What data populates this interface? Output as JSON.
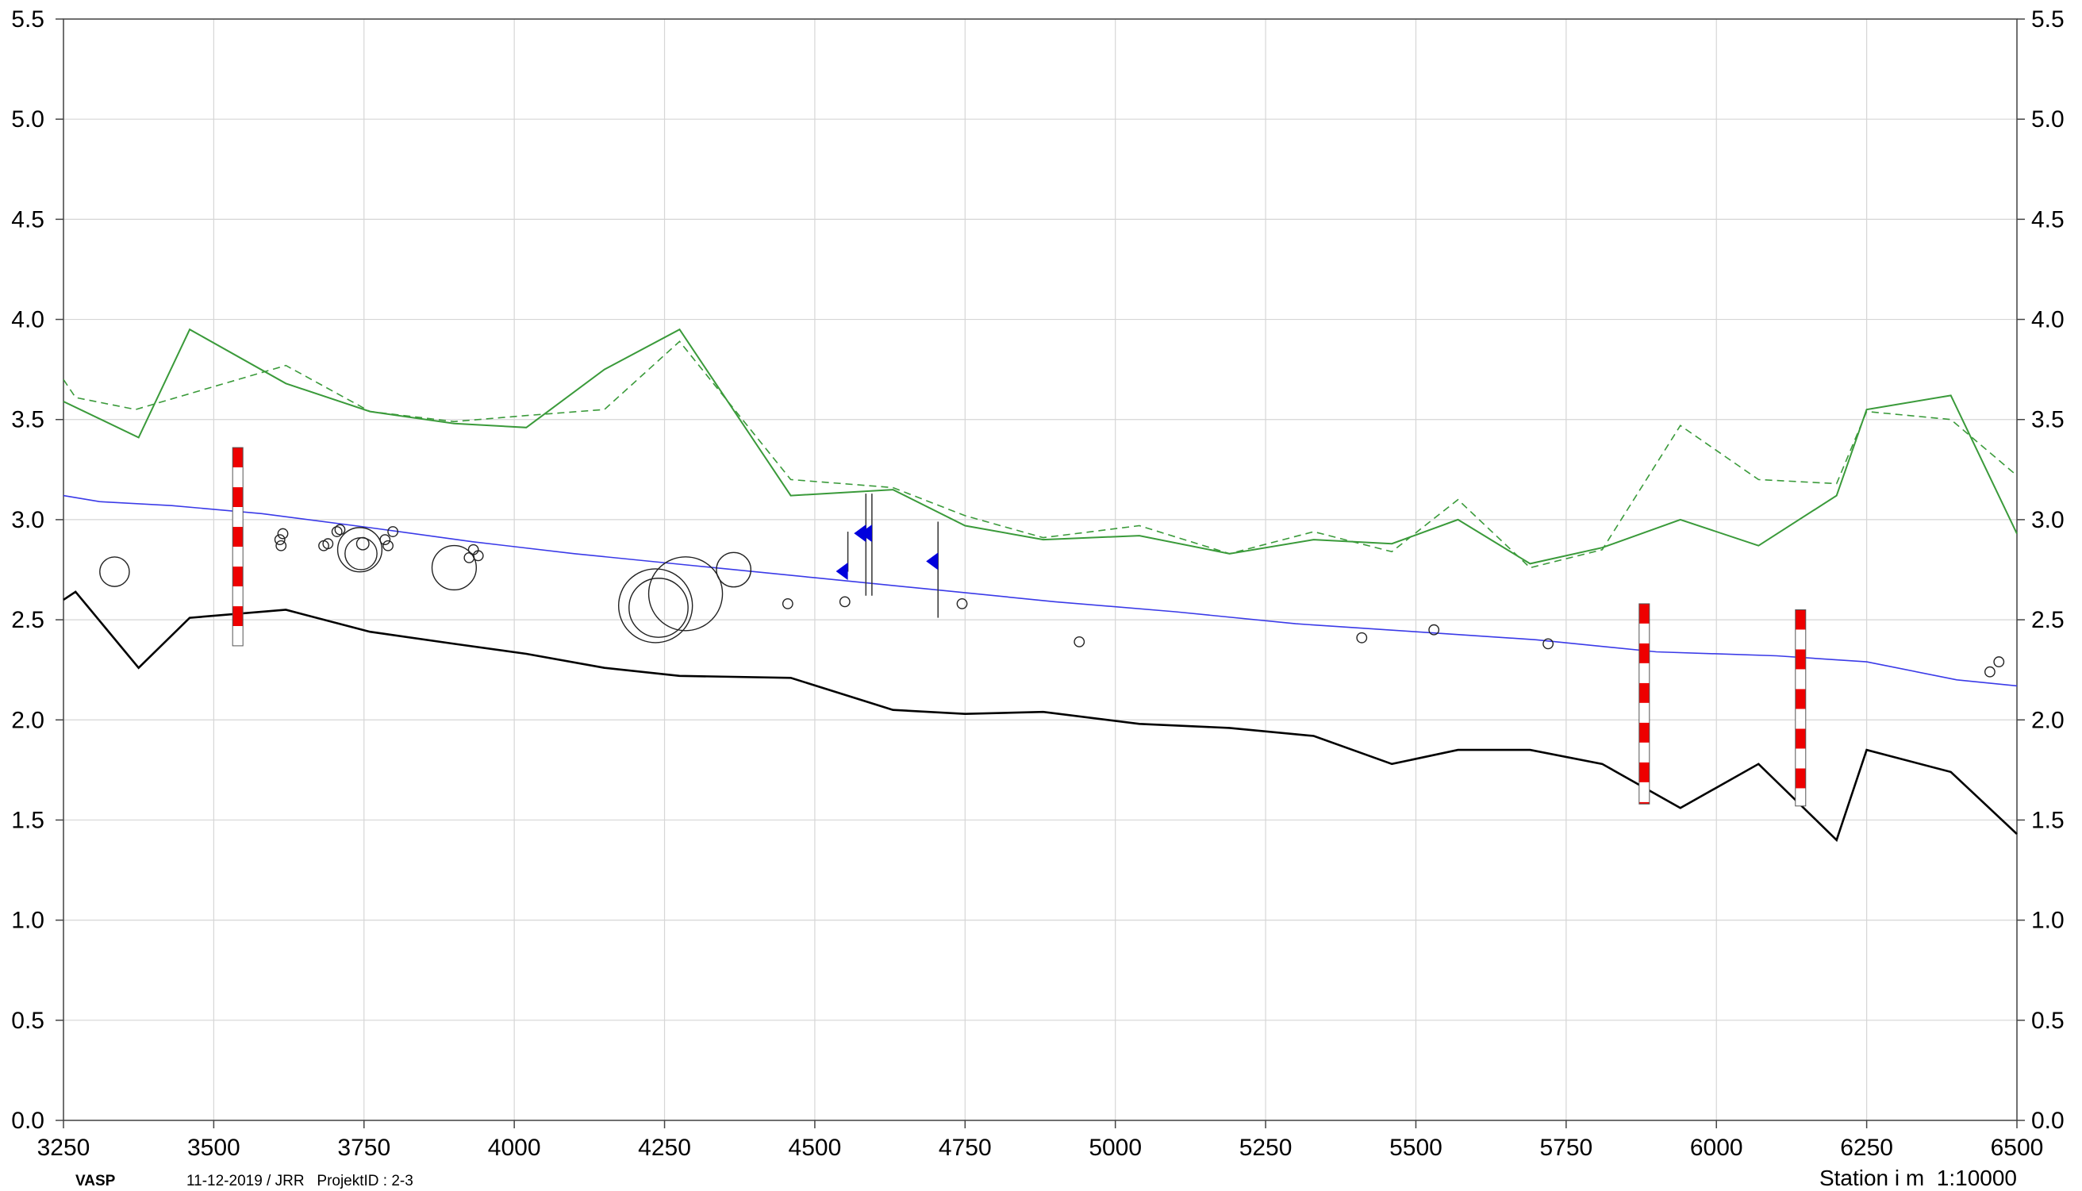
{
  "chart_data": {
    "type": "line",
    "xlim": [
      3250,
      6500
    ],
    "ylim": [
      0,
      5.5
    ],
    "x_ticks": [
      3250,
      3500,
      3750,
      4000,
      4250,
      4500,
      4750,
      5000,
      5250,
      5500,
      5750,
      6000,
      6250,
      6500
    ],
    "y_ticks": [
      "0.0",
      "0.5",
      "1.0",
      "1.5",
      "2.0",
      "2.5",
      "3.0",
      "3.5",
      "4.0",
      "4.5",
      "5.0",
      "5.5"
    ],
    "grid": true,
    "colors": {
      "green": "#3a9a3a",
      "blue": "#3a3ae8",
      "black": "#000000",
      "red": "#ee0000",
      "flag": "#0000dd"
    },
    "series": [
      {
        "style": "green-solid",
        "points": [
          [
            3250,
            3.59
          ],
          [
            3375,
            3.41
          ],
          [
            3460,
            3.95
          ],
          [
            3620,
            3.68
          ],
          [
            3760,
            3.54
          ],
          [
            3900,
            3.48
          ],
          [
            4020,
            3.46
          ],
          [
            4150,
            3.75
          ],
          [
            4275,
            3.95
          ],
          [
            4460,
            3.12
          ],
          [
            4630,
            3.15
          ],
          [
            4750,
            2.97
          ],
          [
            4880,
            2.9
          ],
          [
            5040,
            2.92
          ],
          [
            5190,
            2.83
          ],
          [
            5330,
            2.9
          ],
          [
            5460,
            2.88
          ],
          [
            5570,
            3.0
          ],
          [
            5690,
            2.78
          ],
          [
            5810,
            2.86
          ],
          [
            5940,
            3.0
          ],
          [
            6070,
            2.87
          ],
          [
            6200,
            3.12
          ],
          [
            6250,
            3.55
          ],
          [
            6390,
            3.62
          ],
          [
            6500,
            2.93
          ]
        ]
      },
      {
        "style": "green-dashed",
        "points": [
          [
            3250,
            3.7
          ],
          [
            3270,
            3.61
          ],
          [
            3370,
            3.55
          ],
          [
            3620,
            3.77
          ],
          [
            3760,
            3.54
          ],
          [
            3900,
            3.49
          ],
          [
            4020,
            3.52
          ],
          [
            4150,
            3.55
          ],
          [
            4275,
            3.89
          ],
          [
            4460,
            3.2
          ],
          [
            4630,
            3.16
          ],
          [
            4750,
            3.02
          ],
          [
            4880,
            2.91
          ],
          [
            5040,
            2.97
          ],
          [
            5190,
            2.83
          ],
          [
            5330,
            2.94
          ],
          [
            5460,
            2.84
          ],
          [
            5570,
            3.1
          ],
          [
            5690,
            2.76
          ],
          [
            5810,
            2.85
          ],
          [
            5940,
            3.47
          ],
          [
            6070,
            3.2
          ],
          [
            6200,
            3.18
          ],
          [
            6250,
            3.54
          ],
          [
            6390,
            3.5
          ],
          [
            6500,
            3.22
          ]
        ]
      },
      {
        "style": "blue",
        "points": [
          [
            3250,
            3.12
          ],
          [
            3310,
            3.09
          ],
          [
            3430,
            3.07
          ],
          [
            3580,
            3.03
          ],
          [
            3760,
            2.96
          ],
          [
            3930,
            2.89
          ],
          [
            4100,
            2.83
          ],
          [
            4300,
            2.77
          ],
          [
            4500,
            2.71
          ],
          [
            4700,
            2.65
          ],
          [
            4900,
            2.59
          ],
          [
            5100,
            2.54
          ],
          [
            5300,
            2.48
          ],
          [
            5500,
            2.44
          ],
          [
            5700,
            2.4
          ],
          [
            5900,
            2.34
          ],
          [
            6100,
            2.32
          ],
          [
            6250,
            2.29
          ],
          [
            6400,
            2.2
          ],
          [
            6500,
            2.17
          ]
        ]
      },
      {
        "style": "black",
        "points": [
          [
            3250,
            2.6
          ],
          [
            3270,
            2.64
          ],
          [
            3375,
            2.26
          ],
          [
            3460,
            2.51
          ],
          [
            3620,
            2.55
          ],
          [
            3760,
            2.44
          ],
          [
            3900,
            2.38
          ],
          [
            4020,
            2.33
          ],
          [
            4150,
            2.26
          ],
          [
            4275,
            2.22
          ],
          [
            4460,
            2.21
          ],
          [
            4630,
            2.05
          ],
          [
            4750,
            2.03
          ],
          [
            4880,
            2.04
          ],
          [
            5040,
            1.98
          ],
          [
            5190,
            1.96
          ],
          [
            5330,
            1.92
          ],
          [
            5460,
            1.78
          ],
          [
            5570,
            1.85
          ],
          [
            5690,
            1.85
          ],
          [
            5810,
            1.78
          ],
          [
            5940,
            1.56
          ],
          [
            6070,
            1.78
          ],
          [
            6200,
            1.4
          ],
          [
            6250,
            1.85
          ],
          [
            6390,
            1.74
          ],
          [
            6500,
            1.43
          ]
        ]
      }
    ],
    "circles": [
      [
        3335,
        2.74,
        12
      ],
      [
        3610,
        2.9,
        4
      ],
      [
        3612,
        2.87,
        4
      ],
      [
        3615,
        2.93,
        4
      ],
      [
        3683,
        2.87,
        4
      ],
      [
        3690,
        2.88,
        4
      ],
      [
        3705,
        2.94,
        4
      ],
      [
        3710,
        2.95,
        4
      ],
      [
        3743,
        2.85,
        18
      ],
      [
        3745,
        2.83,
        13
      ],
      [
        3748,
        2.88,
        5
      ],
      [
        3785,
        2.9,
        4
      ],
      [
        3790,
        2.87,
        4
      ],
      [
        3798,
        2.94,
        4
      ],
      [
        3900,
        2.76,
        18
      ],
      [
        3925,
        2.81,
        4
      ],
      [
        3932,
        2.85,
        4
      ],
      [
        3940,
        2.82,
        4
      ],
      [
        4235,
        2.57,
        30
      ],
      [
        4240,
        2.56,
        24
      ],
      [
        4285,
        2.63,
        30
      ],
      [
        4365,
        2.75,
        14
      ],
      [
        4455,
        2.58,
        4
      ],
      [
        4550,
        2.59,
        4
      ],
      [
        4745,
        2.58,
        4
      ],
      [
        4940,
        2.39,
        4
      ],
      [
        5410,
        2.41,
        4
      ],
      [
        5530,
        2.45,
        4
      ],
      [
        5720,
        2.38,
        4
      ],
      [
        6455,
        2.24,
        4
      ],
      [
        6470,
        2.29,
        4
      ]
    ],
    "poles": [
      [
        3540,
        2.37,
        3.36
      ],
      [
        5880,
        1.58,
        2.58
      ],
      [
        6140,
        1.57,
        2.55
      ]
    ],
    "flags": [
      [
        4555,
        2.74,
        2.94
      ],
      [
        4585,
        2.62,
        3.13
      ],
      [
        4595,
        2.62,
        3.13
      ],
      [
        4705,
        2.51,
        2.99
      ]
    ]
  },
  "footer": {
    "brand": "VASP",
    "meta": "11-12-2019 / JRR   ProjektID : 2-3",
    "scale_label": "Station i m  1:10000"
  }
}
